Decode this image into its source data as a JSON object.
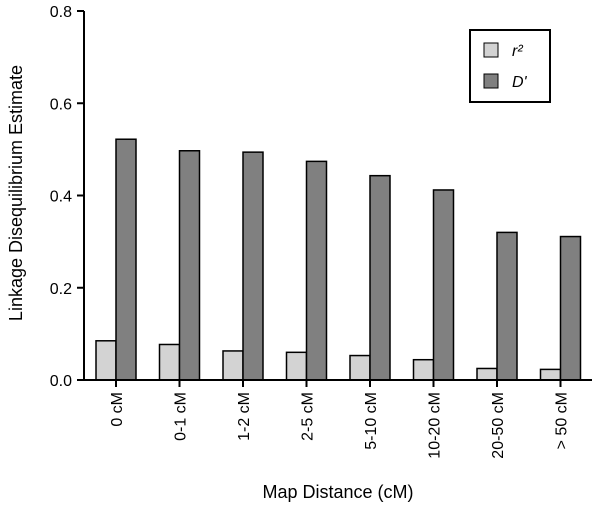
{
  "chart_data": {
    "type": "bar",
    "title": "",
    "xlabel": "Map Distance (cM)",
    "ylabel": "Linkage Disequilibrium Estimate",
    "categories": [
      "0 cM",
      "0-1 cM",
      "1-2 cM",
      "2-5 cM",
      "5-10 cM",
      "10-20 cM",
      "20-50 cM",
      "> 50 cM"
    ],
    "series": [
      {
        "name": "r²",
        "color": "#d3d3d3",
        "values": [
          0.085,
          0.077,
          0.063,
          0.06,
          0.053,
          0.044,
          0.025,
          0.023
        ]
      },
      {
        "name": "D'",
        "color": "#808080",
        "values": [
          0.522,
          0.497,
          0.494,
          0.474,
          0.443,
          0.412,
          0.32,
          0.311
        ]
      }
    ],
    "ylim": [
      0,
      0.8
    ],
    "yticks": [
      "0.0",
      "0.2",
      "0.4",
      "0.6",
      "0.8"
    ],
    "grid": false,
    "legend_position": "top-right"
  }
}
